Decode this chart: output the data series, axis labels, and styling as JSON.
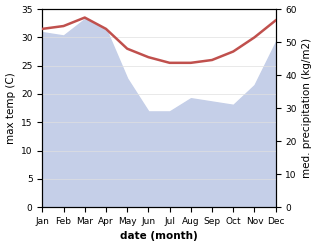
{
  "months": [
    "Jan",
    "Feb",
    "Mar",
    "Apr",
    "May",
    "Jun",
    "Jul",
    "Aug",
    "Sep",
    "Oct",
    "Nov",
    "Dec"
  ],
  "temperature": [
    31.5,
    32.0,
    33.5,
    31.5,
    28.0,
    26.5,
    25.5,
    25.5,
    26.0,
    27.5,
    30.0,
    33.0
  ],
  "precipitation": [
    53.0,
    52.0,
    57.0,
    54.0,
    39.0,
    29.0,
    29.0,
    33.0,
    32.0,
    31.0,
    37.0,
    50.0
  ],
  "temp_color": "#c0504d",
  "precip_color": "#c5cfe8",
  "background_color": "#ffffff",
  "ylim_left": [
    0,
    35
  ],
  "ylim_right": [
    0,
    60
  ],
  "yticks_left": [
    0,
    5,
    10,
    15,
    20,
    25,
    30,
    35
  ],
  "yticks_right": [
    0,
    10,
    20,
    30,
    40,
    50,
    60
  ],
  "ylabel_left": "max temp (C)",
  "ylabel_right": "med. precipitation (kg/m2)",
  "xlabel": "date (month)",
  "label_fontsize": 7.5,
  "tick_fontsize": 6.5
}
